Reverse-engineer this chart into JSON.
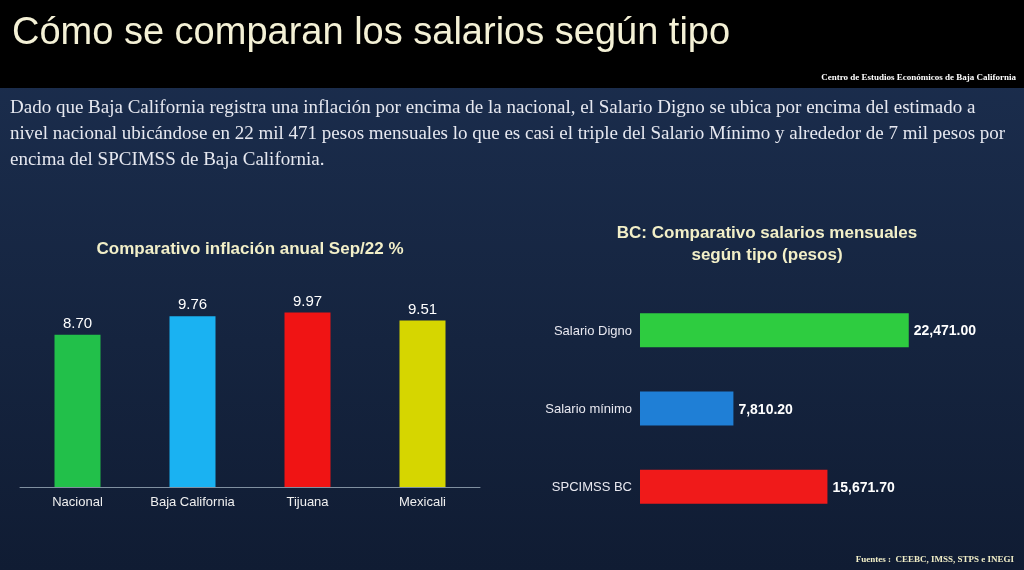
{
  "chart_data": [
    {
      "type": "bar",
      "title": "Comparativo inflación anual Sep/22 %",
      "annotations": [
        "Cómo se comparan los salarios según tipo",
        "Centro de Estudios Económicos de Baja California",
        "Dado que Baja California registra una inflación por encima de la nacional, el Salario Digno se ubica por encima del estimado a nivel nacional ubicándose en 22 mil 471 pesos mensuales lo que es casi el triple del Salario Mínimo y alrededor de 7 mil pesos por encima del SPCIMSS de Baja California."
      ],
      "categories": [
        "Nacional",
        "Baja California",
        "Tijuana",
        "Mexicali"
      ],
      "values": [
        8.7,
        9.76,
        9.97,
        9.51
      ],
      "colors": [
        "#22c04a",
        "#1ab2f2",
        "#f01414",
        "#d6d600"
      ],
      "value_labels": [
        "8.70",
        "9.76",
        "9.97",
        "9.51"
      ]
    },
    {
      "type": "bar",
      "orientation": "horizontal",
      "title": "BC: Comparativo salarios mensuales\nsegún tipo (pesos)",
      "annotations": [
        "Fuentes :  CEEBC, IMSS, STPS e INEGI"
      ],
      "categories": [
        "Salario Digno",
        "Salario mínimo",
        "SPCIMSS BC"
      ],
      "values": [
        22471,
        7810.2,
        15671.7
      ],
      "colors": [
        "#2ecc40",
        "#1f7fd6",
        "#f01a1a"
      ],
      "value_labels": [
        "22,471.00",
        "7,810.20",
        "15,671.70"
      ]
    }
  ]
}
